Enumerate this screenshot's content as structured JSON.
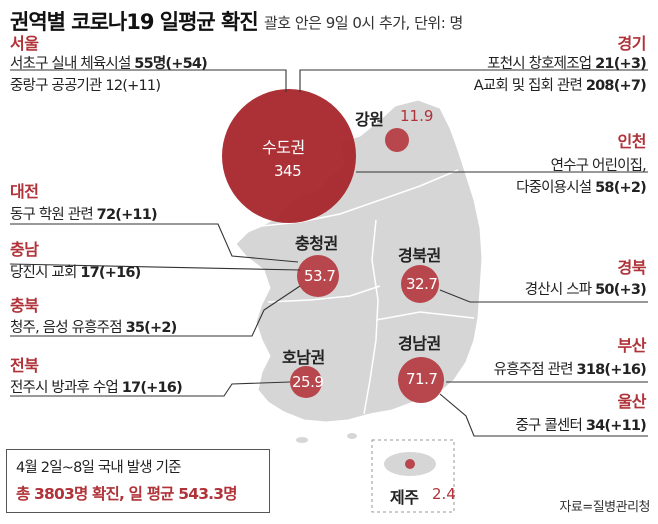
{
  "header": {
    "title": "권역별 코로나19 일평균 확진",
    "subtitle": "괄호 안은 9일 0시 추가, 단위: 명"
  },
  "circles": [
    {
      "label": "수도권",
      "value": "345"
    },
    {
      "label": "강원",
      "value": "11.9"
    },
    {
      "label": "충청권",
      "value": "53.7"
    },
    {
      "label": "경북권",
      "value": "32.7"
    },
    {
      "label": "호남권",
      "value": "25.9"
    },
    {
      "label": "경남권",
      "value": "71.7"
    },
    {
      "label": "제주",
      "value": "2.4"
    }
  ],
  "left_panel": {
    "seoul": {
      "region": "서울",
      "items": [
        "서초구 실내 체육시설",
        "중랑구 공공기관"
      ],
      "counts": [
        "55명(+54)",
        "12(+11)"
      ]
    },
    "daejeon": {
      "region": "대전",
      "items": [
        "동구 학원 관련"
      ],
      "counts": [
        "72(+11)"
      ]
    },
    "chungnam": {
      "region": "충남",
      "items": [
        "당진시 교회"
      ],
      "counts": [
        "17(+16)"
      ]
    },
    "chungbuk": {
      "region": "충북",
      "items": [
        "청주, 음성 유흥주점"
      ],
      "counts": [
        "35(+2)"
      ]
    },
    "jeonbuk": {
      "region": "전북",
      "items": [
        "전주시 방과후 수업"
      ],
      "counts": [
        "17(+16)"
      ]
    }
  },
  "right_panel": {
    "gyeonggi": {
      "region": "경기",
      "items": [
        "포천시 창호제조업",
        "A교회 및 집회 관련"
      ],
      "counts": [
        "21(+3)",
        "208(+7)"
      ]
    },
    "incheon": {
      "region": "인천",
      "items": [
        "연수구 어린이집,",
        "다중이용시설"
      ],
      "counts": [
        "",
        "58(+2)"
      ]
    },
    "gyeongbuk": {
      "region": "경북",
      "items": [
        "경산시 스파"
      ],
      "counts": [
        "50(+3)"
      ]
    },
    "busan": {
      "region": "부산",
      "items": [
        "유흥주점 관련"
      ],
      "counts": [
        "318(+16)"
      ]
    },
    "ulsan": {
      "region": "울산",
      "items": [
        "중구 콜센터"
      ],
      "counts": [
        "34(+11)"
      ]
    }
  },
  "summary": {
    "line1": "4월 2일~8일 국내 발생 기준",
    "line2": "총 3803명 확진, 일 평균 543.3명"
  },
  "source": "자료=질병관리청",
  "colors": {
    "accent": "#b03339",
    "bubble": "#b8474d",
    "bubble_large": "#a8262c",
    "map": "#d6d6d6"
  }
}
